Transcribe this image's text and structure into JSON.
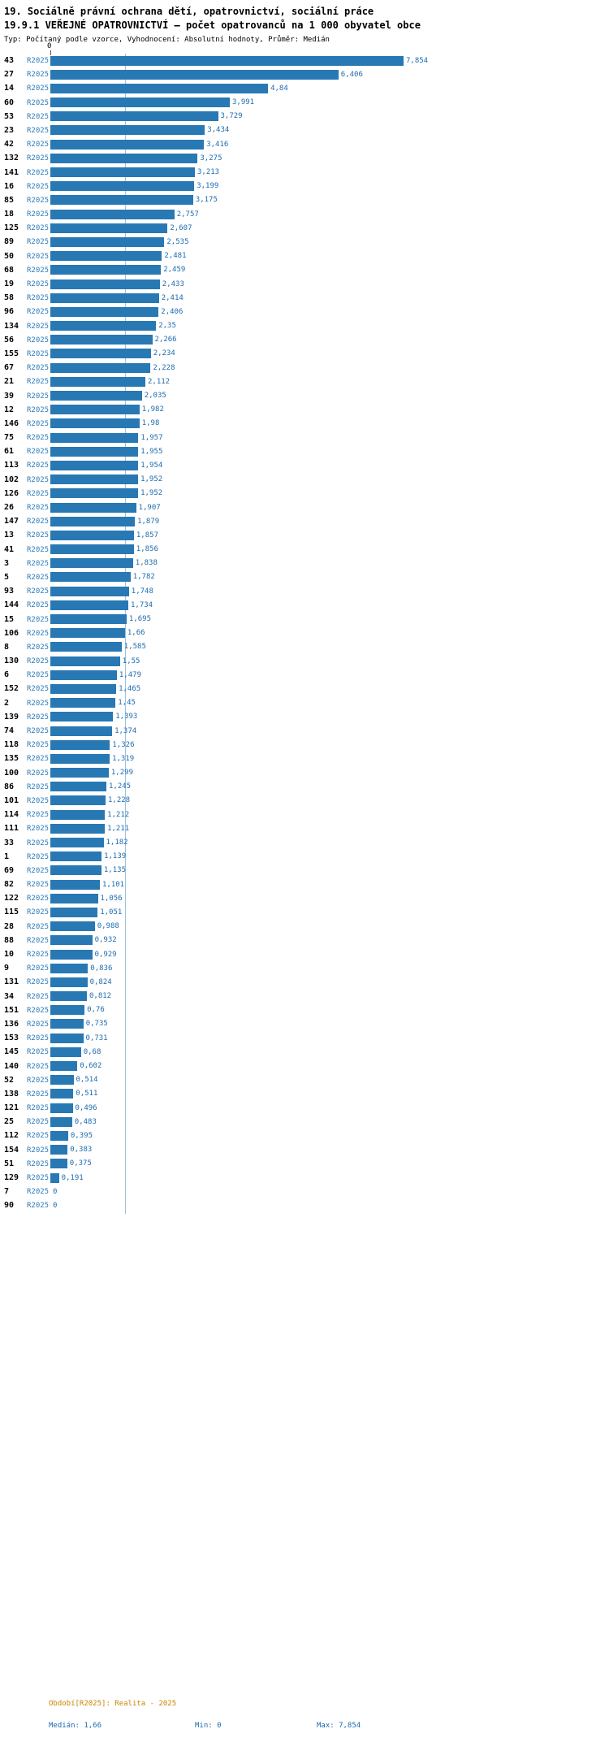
{
  "header": {
    "title_line1": "19. Sociálně právní ochrana dětí, opatrovnictví, sociální práce",
    "title_line2": "19.9.1 VEŘEJNÉ OPATROVNICTVÍ – počet opatrovanců na 1 000 obyvatel obce",
    "subtitle": "Typ: Počítaný podle vzorce, Vyhodnocení: Absolutní hodnoty, Průměr: Medián"
  },
  "axis": {
    "zero_label": "0"
  },
  "chart_data": {
    "type": "bar",
    "orientation": "horizontal",
    "series_name": "R2025",
    "categories": [
      "43",
      "27",
      "14",
      "60",
      "53",
      "23",
      "42",
      "132",
      "141",
      "16",
      "85",
      "18",
      "125",
      "89",
      "50",
      "68",
      "19",
      "58",
      "96",
      "134",
      "56",
      "155",
      "67",
      "21",
      "39",
      "12",
      "146",
      "75",
      "61",
      "113",
      "102",
      "126",
      "26",
      "147",
      "13",
      "41",
      "3",
      "5",
      "93",
      "144",
      "15",
      "106",
      "8",
      "130",
      "6",
      "152",
      "2",
      "139",
      "74",
      "118",
      "135",
      "100",
      "86",
      "101",
      "114",
      "111",
      "33",
      "1",
      "69",
      "82",
      "122",
      "115",
      "28",
      "88",
      "10",
      "9",
      "131",
      "34",
      "151",
      "136",
      "153",
      "145",
      "140",
      "52",
      "138",
      "121",
      "25",
      "112",
      "154",
      "51",
      "129",
      "7",
      "90"
    ],
    "values": [
      7.854,
      6.406,
      4.84,
      3.991,
      3.729,
      3.434,
      3.416,
      3.275,
      3.213,
      3.199,
      3.175,
      2.757,
      2.607,
      2.535,
      2.481,
      2.459,
      2.433,
      2.414,
      2.406,
      2.35,
      2.266,
      2.234,
      2.228,
      2.112,
      2.035,
      1.982,
      1.98,
      1.957,
      1.955,
      1.954,
      1.952,
      1.952,
      1.907,
      1.879,
      1.857,
      1.856,
      1.838,
      1.782,
      1.748,
      1.734,
      1.695,
      1.66,
      1.585,
      1.55,
      1.479,
      1.465,
      1.45,
      1.393,
      1.374,
      1.326,
      1.319,
      1.299,
      1.245,
      1.228,
      1.212,
      1.211,
      1.182,
      1.139,
      1.135,
      1.101,
      1.056,
      1.051,
      0.988,
      0.932,
      0.929,
      0.836,
      0.824,
      0.812,
      0.76,
      0.735,
      0.731,
      0.68,
      0.602,
      0.514,
      0.511,
      0.496,
      0.483,
      0.395,
      0.383,
      0.375,
      0.191,
      0,
      0
    ],
    "title": "19.9.1 VEŘEJNÉ OPATROVNICTVÍ – počet opatrovanců na 1 000 obyvatel obce",
    "xlabel": "",
    "ylabel": "",
    "xlim": [
      0,
      7.854
    ],
    "median": 1.66,
    "min": 0,
    "max": 7.854,
    "decimal_separator": ",",
    "bar_color": "#2878b4",
    "value_label_color": "#1e6bb0",
    "period_label_color": "#2e7cb8",
    "median_line_color": "#9cc3e0",
    "legend_position": "none",
    "grid": false
  },
  "footer": {
    "period_label": "Období[R2025]: Realita - 2025",
    "median_label": "Medián: 1,66",
    "min_label": "Min: 0",
    "max_label": "Max: 7,854"
  }
}
